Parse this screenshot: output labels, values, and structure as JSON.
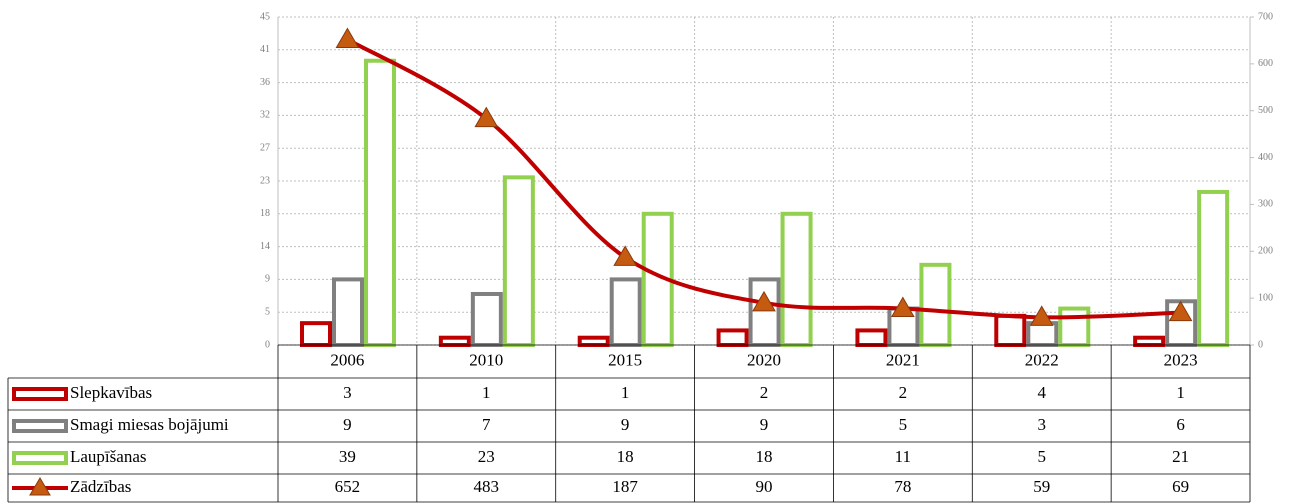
{
  "chart_data": {
    "type": "bar",
    "categories": [
      "2006",
      "2010",
      "2015",
      "2020",
      "2021",
      "2022",
      "2023"
    ],
    "series": [
      {
        "name": "Slepkavības",
        "color": "#c00000",
        "type": "bar",
        "values": [
          3,
          1,
          1,
          2,
          2,
          4,
          1
        ]
      },
      {
        "name": "Smagi miesas bojājumi",
        "color": "#808080",
        "type": "bar",
        "values": [
          9,
          7,
          9,
          9,
          5,
          3,
          6
        ]
      },
      {
        "name": "Laupīšanas",
        "color": "#92d050",
        "type": "bar",
        "values": [
          39,
          23,
          18,
          18,
          11,
          5,
          21
        ]
      },
      {
        "name": "Zādzības",
        "color": "#c00000",
        "marker_color": "#c55a11",
        "type": "line",
        "axis": "y2",
        "values": [
          652,
          483,
          187,
          90,
          78,
          59,
          69
        ]
      }
    ],
    "ylim": [
      0,
      45
    ],
    "yticks": [
      0,
      {
        "value": 4.5,
        "label": "5"
      },
      9,
      {
        "value": 13.5,
        "label": "14"
      },
      18,
      {
        "value": 22.5,
        "label": "23"
      },
      27,
      {
        "value": 31.5,
        "label": "32"
      },
      36,
      {
        "value": 40.5,
        "label": "41"
      },
      45
    ],
    "y2lim": [
      0,
      700
    ],
    "y2ticks": [
      0,
      100,
      200,
      300,
      400,
      500,
      600,
      700
    ],
    "grid": true
  }
}
